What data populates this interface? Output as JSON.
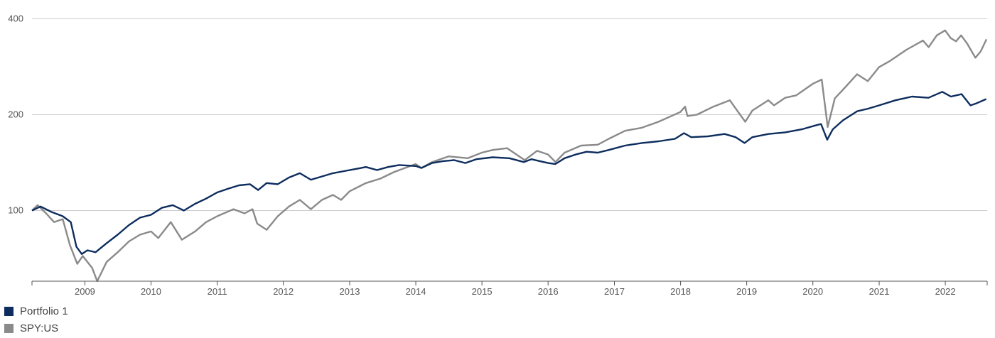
{
  "chart_data": {
    "type": "line",
    "y_scale": "log",
    "ylim": [
      60,
      440
    ],
    "xlim": [
      "2008-03-15",
      "2022-08-20"
    ],
    "y_ticks": [
      100,
      200,
      400
    ],
    "y_tick_labels": [
      "100",
      "200",
      "400"
    ],
    "x_ticks": [
      "2009-01-01",
      "2010-01-01",
      "2011-01-01",
      "2012-01-01",
      "2013-01-01",
      "2014-01-01",
      "2015-01-01",
      "2016-01-01",
      "2017-01-01",
      "2018-01-01",
      "2019-01-01",
      "2020-01-01",
      "2021-01-01",
      "2022-01-01"
    ],
    "x_tick_labels": [
      "2009",
      "2010",
      "2011",
      "2012",
      "2013",
      "2014",
      "2015",
      "2016",
      "2017",
      "2018",
      "2019",
      "2020",
      "2021",
      "2022"
    ],
    "grid": true,
    "legend_position": "bottom-left",
    "series": [
      {
        "name": "Portfolio 1",
        "color": "#0d2d5e",
        "points": [
          [
            "2008-03-15",
            100
          ],
          [
            "2008-05-01",
            103
          ],
          [
            "2008-07-01",
            99
          ],
          [
            "2008-09-01",
            96
          ],
          [
            "2008-10-15",
            92
          ],
          [
            "2008-11-15",
            77
          ],
          [
            "2008-12-15",
            73
          ],
          [
            "2009-01-15",
            75
          ],
          [
            "2009-03-01",
            74
          ],
          [
            "2009-05-01",
            79
          ],
          [
            "2009-07-01",
            84
          ],
          [
            "2009-09-01",
            90
          ],
          [
            "2009-11-01",
            95
          ],
          [
            "2010-01-01",
            97
          ],
          [
            "2010-03-01",
            102
          ],
          [
            "2010-05-01",
            104
          ],
          [
            "2010-07-01",
            100
          ],
          [
            "2010-09-01",
            105
          ],
          [
            "2010-11-01",
            109
          ],
          [
            "2011-01-01",
            114
          ],
          [
            "2011-03-01",
            117
          ],
          [
            "2011-05-01",
            120
          ],
          [
            "2011-07-01",
            121
          ],
          [
            "2011-08-15",
            116
          ],
          [
            "2011-10-01",
            122
          ],
          [
            "2011-12-01",
            121
          ],
          [
            "2012-02-01",
            127
          ],
          [
            "2012-04-01",
            131
          ],
          [
            "2012-06-01",
            125
          ],
          [
            "2012-08-01",
            128
          ],
          [
            "2012-10-01",
            131
          ],
          [
            "2012-12-01",
            133
          ],
          [
            "2013-02-01",
            135
          ],
          [
            "2013-04-01",
            137
          ],
          [
            "2013-06-01",
            134
          ],
          [
            "2013-08-01",
            137
          ],
          [
            "2013-10-01",
            139
          ],
          [
            "2014-01-01",
            138
          ],
          [
            "2014-02-01",
            136
          ],
          [
            "2014-04-01",
            141
          ],
          [
            "2014-06-01",
            143
          ],
          [
            "2014-08-01",
            144
          ],
          [
            "2014-10-01",
            141
          ],
          [
            "2014-12-01",
            145
          ],
          [
            "2015-03-01",
            147
          ],
          [
            "2015-06-01",
            146
          ],
          [
            "2015-08-20",
            142
          ],
          [
            "2015-10-01",
            145
          ],
          [
            "2016-01-01",
            141
          ],
          [
            "2016-02-10",
            140
          ],
          [
            "2016-04-01",
            146
          ],
          [
            "2016-06-01",
            150
          ],
          [
            "2016-08-01",
            153
          ],
          [
            "2016-10-01",
            152
          ],
          [
            "2016-12-01",
            155
          ],
          [
            "2017-03-01",
            160
          ],
          [
            "2017-06-01",
            163
          ],
          [
            "2017-09-01",
            165
          ],
          [
            "2017-12-01",
            168
          ],
          [
            "2018-01-20",
            175
          ],
          [
            "2018-03-01",
            170
          ],
          [
            "2018-06-01",
            171
          ],
          [
            "2018-09-01",
            174
          ],
          [
            "2018-11-01",
            170
          ],
          [
            "2018-12-20",
            163
          ],
          [
            "2019-02-01",
            170
          ],
          [
            "2019-05-01",
            174
          ],
          [
            "2019-08-01",
            176
          ],
          [
            "2019-11-01",
            180
          ],
          [
            "2020-01-15",
            185
          ],
          [
            "2020-02-15",
            187
          ],
          [
            "2020-03-20",
            167
          ],
          [
            "2020-04-20",
            180
          ],
          [
            "2020-06-15",
            192
          ],
          [
            "2020-09-01",
            205
          ],
          [
            "2020-11-01",
            209
          ],
          [
            "2021-01-01",
            214
          ],
          [
            "2021-04-01",
            222
          ],
          [
            "2021-07-01",
            228
          ],
          [
            "2021-09-30",
            226
          ],
          [
            "2021-12-15",
            236
          ],
          [
            "2022-02-01",
            228
          ],
          [
            "2022-04-01",
            232
          ],
          [
            "2022-05-20",
            214
          ],
          [
            "2022-06-20",
            217
          ],
          [
            "2022-08-15",
            224
          ]
        ]
      },
      {
        "name": "SPY:US",
        "color": "#8a8a8a",
        "points": [
          [
            "2008-03-15",
            100
          ],
          [
            "2008-04-15",
            104
          ],
          [
            "2008-06-01",
            98
          ],
          [
            "2008-07-15",
            92
          ],
          [
            "2008-09-01",
            94
          ],
          [
            "2008-10-10",
            78
          ],
          [
            "2008-11-20",
            68
          ],
          [
            "2008-12-20",
            72
          ],
          [
            "2009-02-10",
            66
          ],
          [
            "2009-03-10",
            60
          ],
          [
            "2009-05-01",
            69
          ],
          [
            "2009-07-01",
            74
          ],
          [
            "2009-09-01",
            80
          ],
          [
            "2009-11-01",
            84
          ],
          [
            "2010-01-01",
            86
          ],
          [
            "2010-02-10",
            82
          ],
          [
            "2010-04-20",
            92
          ],
          [
            "2010-06-20",
            81
          ],
          [
            "2010-09-01",
            86
          ],
          [
            "2010-11-01",
            92
          ],
          [
            "2011-01-01",
            96
          ],
          [
            "2011-04-01",
            101
          ],
          [
            "2011-06-01",
            98
          ],
          [
            "2011-07-15",
            101
          ],
          [
            "2011-08-10",
            91
          ],
          [
            "2011-10-01",
            87
          ],
          [
            "2011-12-01",
            96
          ],
          [
            "2012-02-01",
            103
          ],
          [
            "2012-04-01",
            108
          ],
          [
            "2012-06-01",
            101
          ],
          [
            "2012-08-01",
            108
          ],
          [
            "2012-10-01",
            112
          ],
          [
            "2012-11-15",
            108
          ],
          [
            "2013-01-01",
            115
          ],
          [
            "2013-04-01",
            122
          ],
          [
            "2013-06-20",
            126
          ],
          [
            "2013-09-01",
            132
          ],
          [
            "2013-12-31",
            140
          ],
          [
            "2014-02-01",
            136
          ],
          [
            "2014-04-01",
            142
          ],
          [
            "2014-07-01",
            148
          ],
          [
            "2014-10-15",
            146
          ],
          [
            "2014-12-31",
            152
          ],
          [
            "2015-03-01",
            155
          ],
          [
            "2015-05-20",
            157
          ],
          [
            "2015-08-25",
            144
          ],
          [
            "2015-11-01",
            154
          ],
          [
            "2016-01-01",
            150
          ],
          [
            "2016-02-11",
            142
          ],
          [
            "2016-04-01",
            152
          ],
          [
            "2016-07-01",
            160
          ],
          [
            "2016-10-01",
            161
          ],
          [
            "2016-12-01",
            168
          ],
          [
            "2017-03-01",
            178
          ],
          [
            "2017-06-01",
            182
          ],
          [
            "2017-09-01",
            190
          ],
          [
            "2017-12-31",
            204
          ],
          [
            "2018-01-26",
            212
          ],
          [
            "2018-02-08",
            198
          ],
          [
            "2018-04-01",
            200
          ],
          [
            "2018-07-01",
            212
          ],
          [
            "2018-09-30",
            222
          ],
          [
            "2018-10-20",
            214
          ],
          [
            "2018-12-24",
            190
          ],
          [
            "2019-02-01",
            206
          ],
          [
            "2019-04-30",
            222
          ],
          [
            "2019-06-01",
            214
          ],
          [
            "2019-08-01",
            226
          ],
          [
            "2019-10-01",
            230
          ],
          [
            "2019-12-31",
            250
          ],
          [
            "2020-02-19",
            258
          ],
          [
            "2020-03-23",
            183
          ],
          [
            "2020-05-01",
            225
          ],
          [
            "2020-07-01",
            245
          ],
          [
            "2020-09-01",
            268
          ],
          [
            "2020-10-30",
            255
          ],
          [
            "2020-12-31",
            282
          ],
          [
            "2021-03-01",
            295
          ],
          [
            "2021-06-01",
            320
          ],
          [
            "2021-08-31",
            342
          ],
          [
            "2021-10-01",
            326
          ],
          [
            "2021-11-15",
            355
          ],
          [
            "2021-12-31",
            368
          ],
          [
            "2022-01-31",
            348
          ],
          [
            "2022-03-01",
            340
          ],
          [
            "2022-03-29",
            355
          ],
          [
            "2022-05-01",
            335
          ],
          [
            "2022-06-16",
            302
          ],
          [
            "2022-07-15",
            316
          ],
          [
            "2022-08-16",
            345
          ]
        ]
      }
    ]
  }
}
